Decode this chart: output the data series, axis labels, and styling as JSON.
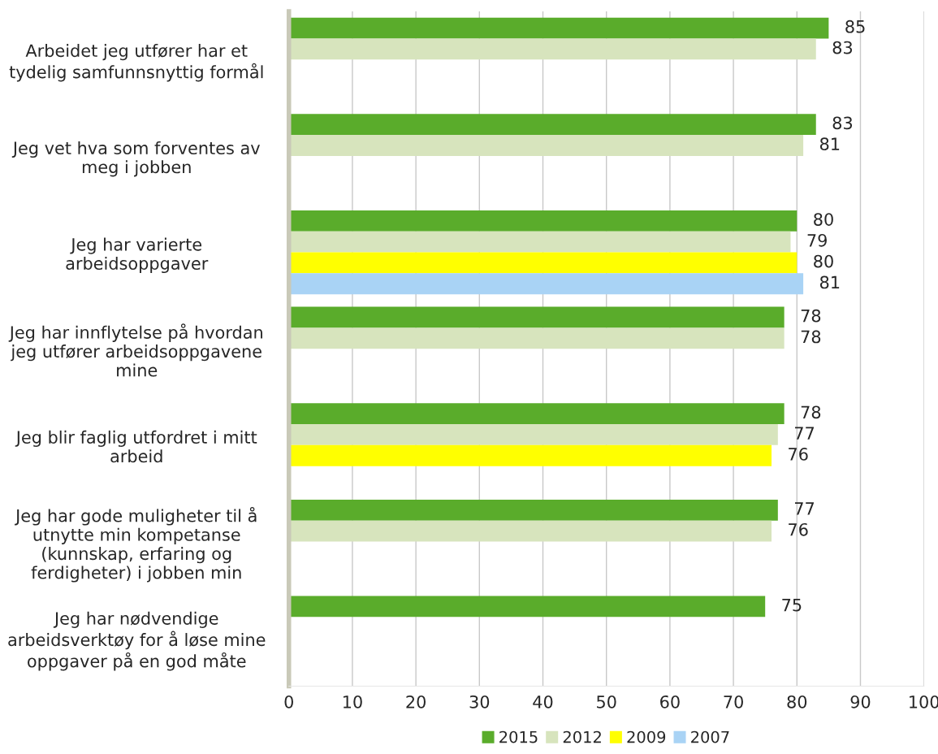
{
  "chart_data": {
    "type": "bar",
    "orientation": "horizontal",
    "categories": [
      "Arbeidet jeg utfører har et\ntydelig samfunnsnyttig formål",
      "Jeg vet hva som forventes av\nmeg i jobben",
      "Jeg har varierte\narbeidsoppgaver",
      "Jeg har innflytelse på hvordan\njeg utfører arbeidsoppgavene\nmine",
      "Jeg blir faglig utfordret i mitt\narbeid",
      "Jeg har gode muligheter til å\nutnytte min kompetanse\n(kunnskap, erfaring og\nferdigheter) i jobben min",
      "Jeg har nødvendige\narbeidsverktøy for å løse mine\noppgaver på en god måte"
    ],
    "series": [
      {
        "name": "2015",
        "color": "#5aac2b",
        "values": [
          85,
          83,
          80,
          78,
          78,
          77,
          75
        ]
      },
      {
        "name": "2012",
        "color": "#d7e4bd",
        "values": [
          83,
          81,
          79,
          78,
          77,
          76,
          null
        ]
      },
      {
        "name": "2009",
        "color": "#ffff00",
        "values": [
          null,
          null,
          80,
          null,
          76,
          null,
          null
        ]
      },
      {
        "name": "2007",
        "color": "#a9d3f5",
        "values": [
          null,
          null,
          81,
          null,
          null,
          null,
          null
        ]
      }
    ],
    "xlim": [
      0,
      100
    ],
    "xticks": [
      0,
      10,
      20,
      30,
      40,
      50,
      60,
      70,
      80,
      90,
      100
    ],
    "grid": "x",
    "legend": "bottom",
    "data_labels": true
  }
}
